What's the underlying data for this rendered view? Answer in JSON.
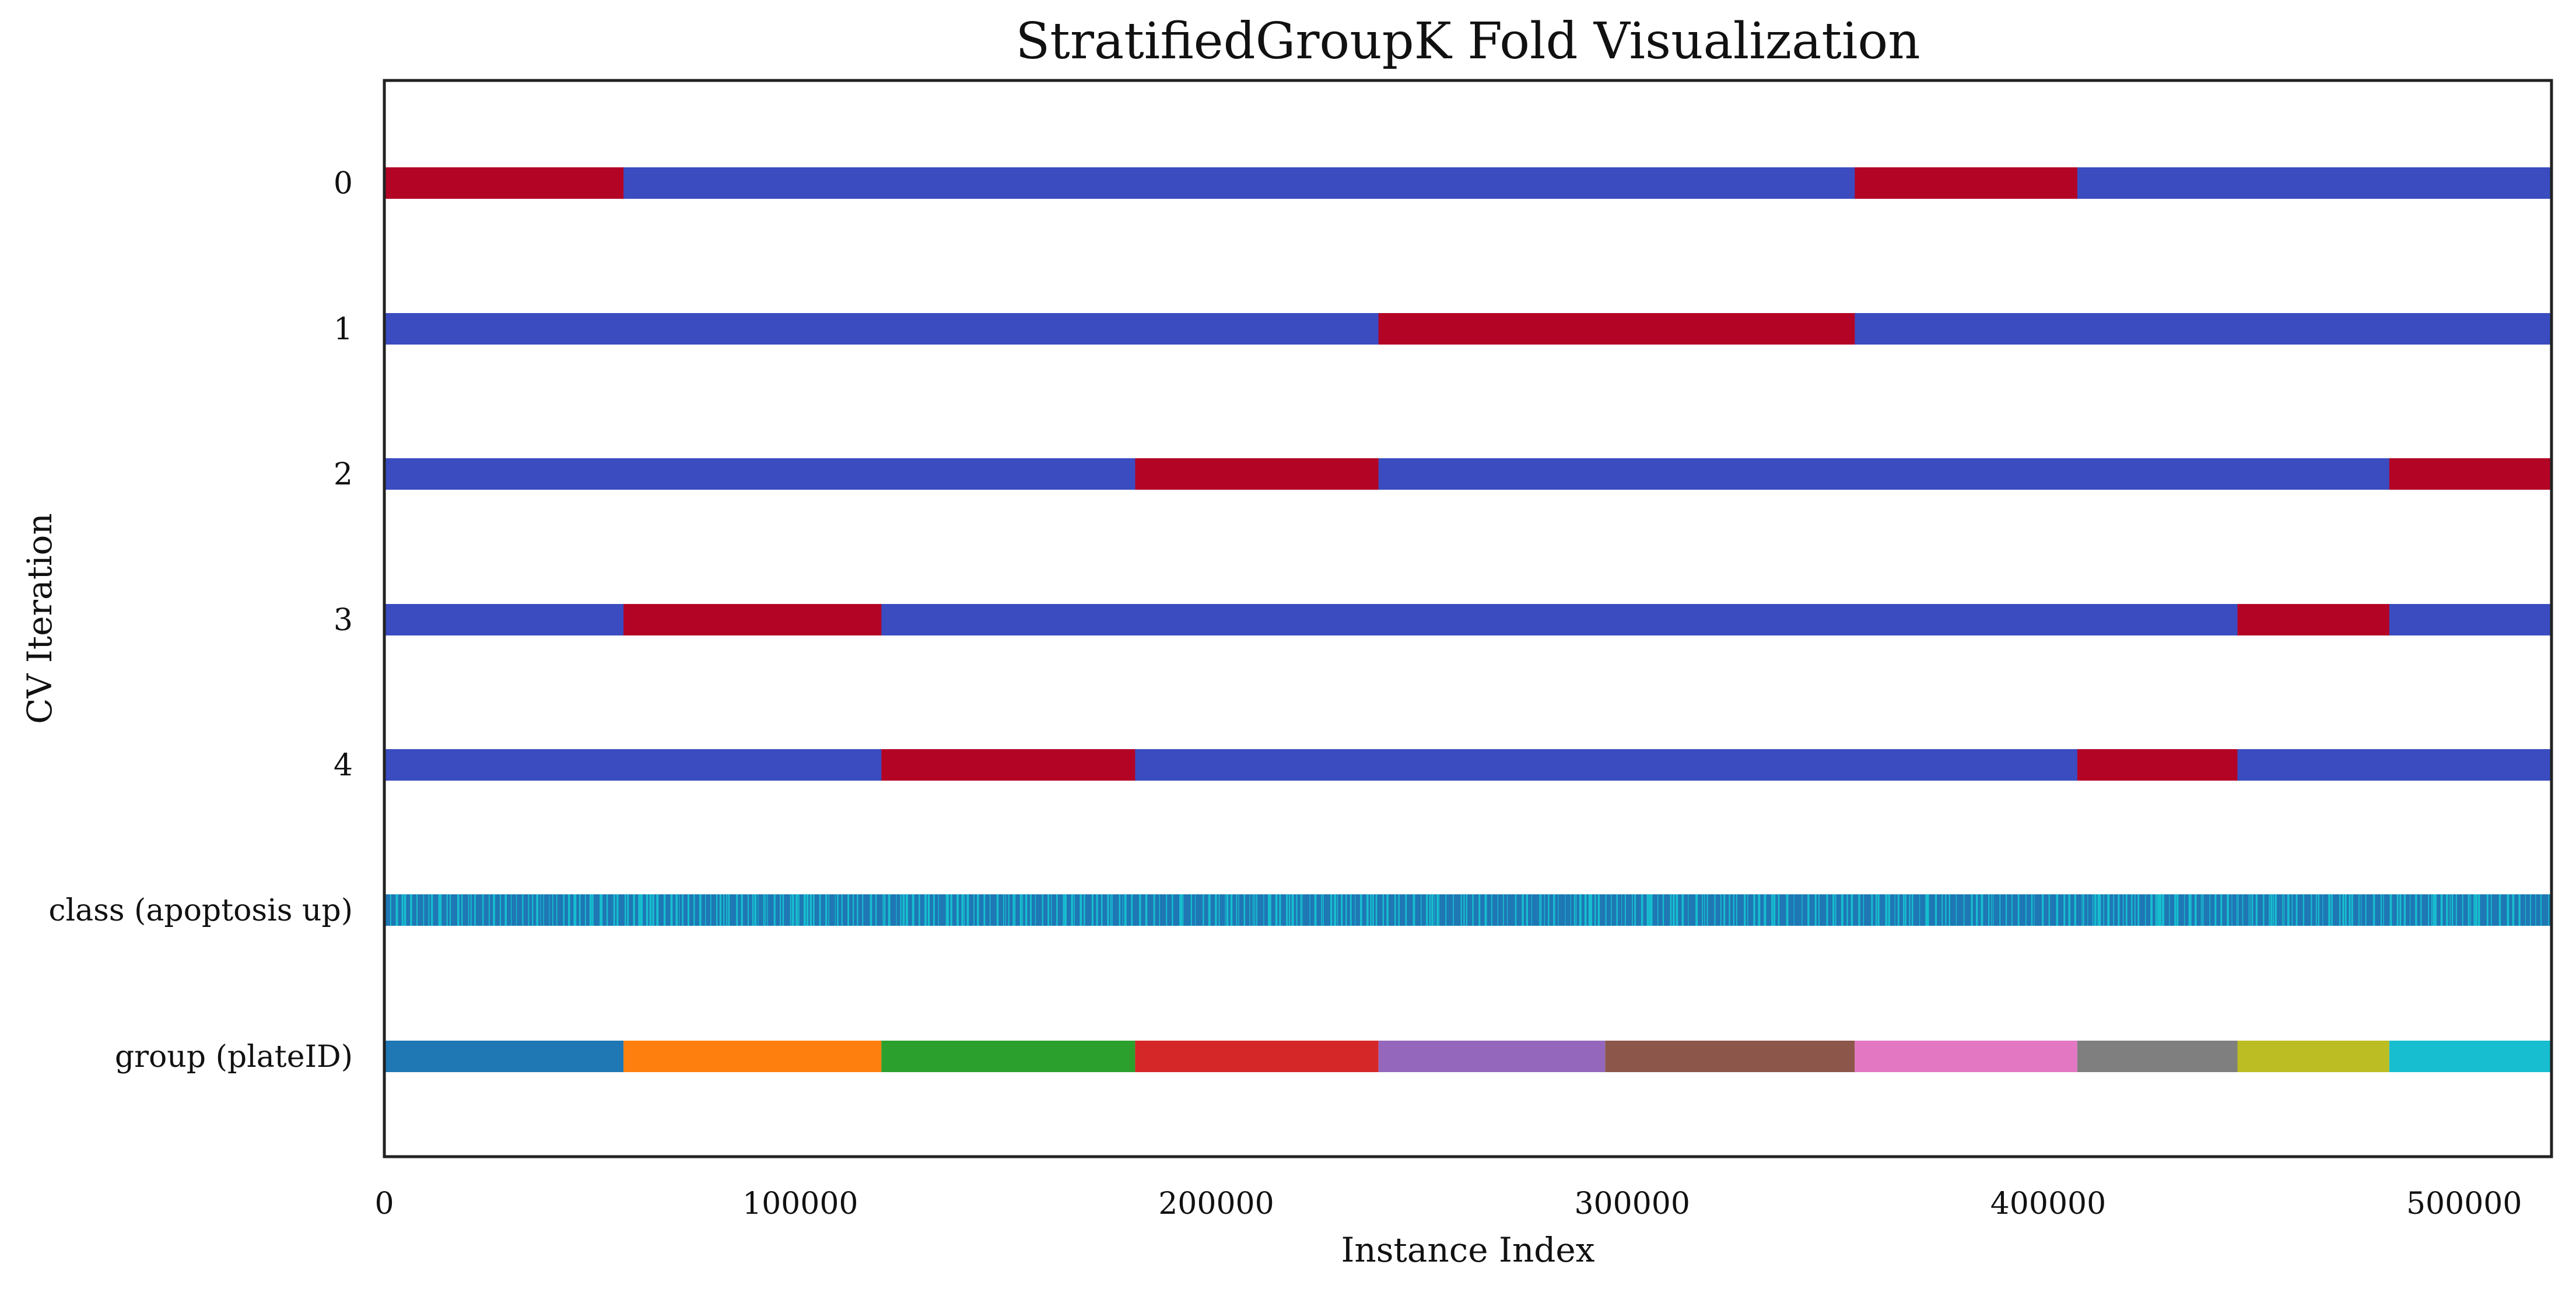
{
  "chart_data": {
    "type": "bar",
    "title": "StratifiedGroupK Fold Visualization",
    "xlabel": "Instance Index",
    "ylabel": "CV Iteration",
    "xlim": [
      0,
      521000
    ],
    "x_ticks": [
      "0",
      "100000",
      "200000",
      "300000",
      "400000",
      "500000"
    ],
    "x_tick_values": [
      0,
      100000,
      200000,
      300000,
      400000,
      500000
    ],
    "rows": [
      "0",
      "1",
      "2",
      "3",
      "4",
      "class (apoptosis up)",
      "group (plateID)"
    ],
    "legend": "none",
    "grid": false,
    "colors": {
      "train": "#3b4cc0",
      "test": "#b40426",
      "class_a": "#1f77b4",
      "class_b": "#17becf"
    },
    "groups": [
      {
        "start": 0,
        "end": 57500,
        "color": "#1f77b4"
      },
      {
        "start": 57500,
        "end": 119500,
        "color": "#ff7f0e"
      },
      {
        "start": 119500,
        "end": 180500,
        "color": "#2ca02c"
      },
      {
        "start": 180500,
        "end": 239000,
        "color": "#d62728"
      },
      {
        "start": 239000,
        "end": 293500,
        "color": "#9467bd"
      },
      {
        "start": 293500,
        "end": 353500,
        "color": "#8c564b"
      },
      {
        "start": 353500,
        "end": 407000,
        "color": "#e377c2"
      },
      {
        "start": 407000,
        "end": 445500,
        "color": "#7f7f7f"
      },
      {
        "start": 445500,
        "end": 482000,
        "color": "#bcbd22"
      },
      {
        "start": 482000,
        "end": 521000,
        "color": "#17becf"
      }
    ],
    "folds": [
      {
        "iteration": 0,
        "test": [
          [
            0,
            57500
          ],
          [
            353500,
            407000
          ]
        ]
      },
      {
        "iteration": 1,
        "test": [
          [
            239000,
            353500
          ]
        ]
      },
      {
        "iteration": 2,
        "test": [
          [
            180500,
            239000
          ],
          [
            482000,
            521000
          ]
        ]
      },
      {
        "iteration": 3,
        "test": [
          [
            57500,
            119500
          ],
          [
            445500,
            482000
          ]
        ]
      },
      {
        "iteration": 4,
        "test": [
          [
            119500,
            180500
          ],
          [
            407000,
            445500
          ]
        ]
      }
    ]
  }
}
